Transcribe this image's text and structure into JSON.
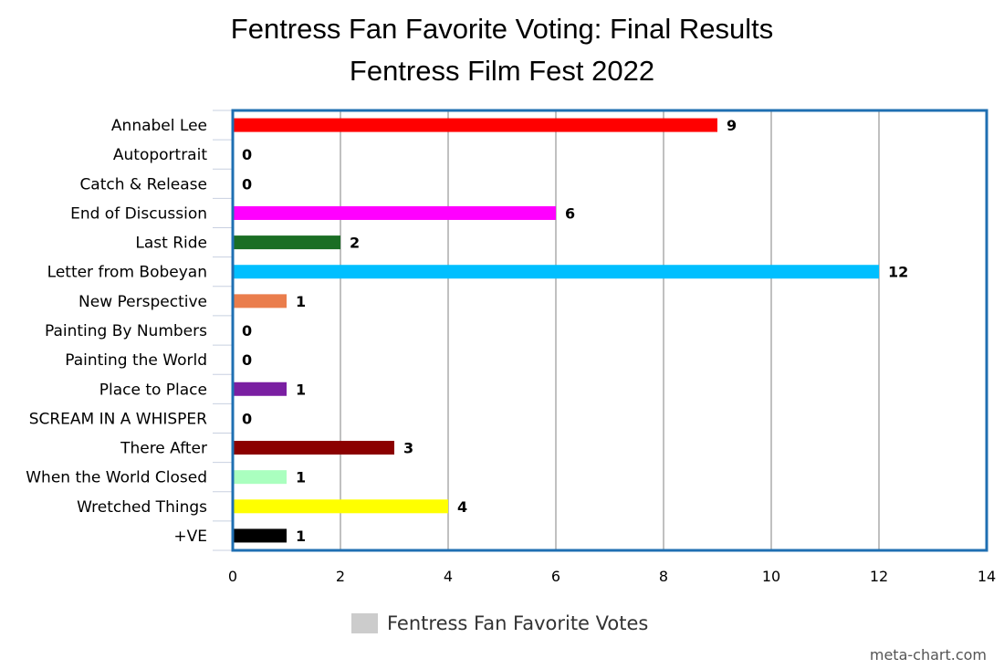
{
  "chart_data": {
    "type": "bar",
    "orientation": "horizontal",
    "title": "Fentress Fan Favorite Voting: Final Results",
    "subtitle": "Fentress Film Fest 2022",
    "categories": [
      "Annabel Lee",
      "Autoportrait",
      "Catch & Release",
      "End of Discussion",
      "Last Ride",
      "Letter from Bobeyan",
      "New Perspective",
      "Painting By Numbers",
      "Painting the World",
      "Place to Place",
      "SCREAM IN A WHISPER",
      "There After",
      "When the World Closed",
      "Wretched Things",
      "+VE"
    ],
    "values": [
      9,
      0,
      0,
      6,
      2,
      12,
      1,
      0,
      0,
      1,
      0,
      3,
      1,
      4,
      1
    ],
    "value_labels": [
      "9",
      "0",
      "0",
      "6",
      "2",
      "12",
      "1",
      "0",
      "0",
      "1",
      "0",
      "3",
      "1",
      "4",
      "1"
    ],
    "bar_colors": [
      "#ff0000",
      "#0000ff",
      "#ffa500",
      "#ff00ff",
      "#1a6e24",
      "#00bfff",
      "#ea7d4c",
      "#ff69b4",
      "#00ffff",
      "#7a1fa2",
      "#808080",
      "#8b0000",
      "#aaffbf",
      "#ffff00",
      "#000000"
    ],
    "xlim": [
      0,
      14
    ],
    "x_ticks": [
      "0",
      "2",
      "4",
      "6",
      "8",
      "10",
      "12",
      "14"
    ],
    "x_tick_values": [
      0,
      2,
      4,
      6,
      8,
      10,
      12,
      14
    ],
    "grid": true,
    "legend": {
      "label": "Fentress Fan Favorite Votes",
      "swatch_color": "#cccccc",
      "placement": "bottom"
    },
    "border_color": "#1f6fb2",
    "grid_color": "#c0c0c0"
  },
  "credit": "meta-chart.com"
}
